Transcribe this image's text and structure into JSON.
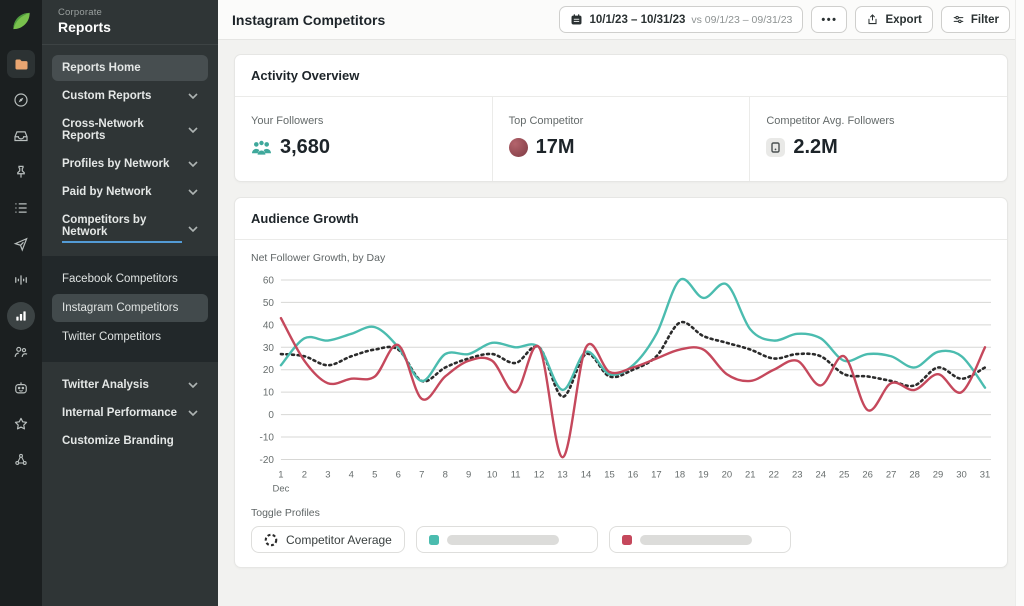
{
  "brand": {
    "eyebrow": "Corporate",
    "title": "Reports"
  },
  "sidebar": {
    "items": [
      {
        "label": "Reports Home"
      },
      {
        "label": "Custom Reports"
      },
      {
        "label": "Cross-Network Reports"
      },
      {
        "label": "Profiles by Network"
      },
      {
        "label": "Paid by Network"
      },
      {
        "label": "Competitors by Network"
      }
    ],
    "submenu": {
      "items": [
        {
          "label": "Facebook Competitors"
        },
        {
          "label": "Instagram Competitors"
        },
        {
          "label": "Twitter Competitors"
        }
      ]
    },
    "footer_items": [
      {
        "label": "Twitter Analysis"
      },
      {
        "label": "Internal Performance"
      },
      {
        "label": "Customize Branding"
      }
    ]
  },
  "header": {
    "title": "Instagram Competitors",
    "date_range": {
      "primary": "10/1/23 – 10/31/23",
      "comparison": "vs 09/1/23 – 09/31/23"
    },
    "more_label": "•••",
    "export_label": "Export",
    "filter_label": "Filter"
  },
  "activity_overview": {
    "title": "Activity Overview",
    "stats": [
      {
        "label": "Your Followers",
        "value": "3,680",
        "icon": "followers-group-icon",
        "icon_color": "#3FA89B"
      },
      {
        "label": "Top Competitor",
        "value": "17M",
        "icon": "competitor-avatar",
        "icon_color": "#9C4850"
      },
      {
        "label": "Competitor Avg. Followers",
        "value": "2.2M",
        "icon": "generic-profile-icon",
        "icon_color": "#E9E9E7"
      }
    ]
  },
  "audience_growth": {
    "title": "Audience Growth",
    "subtitle": "Net Follower Growth, by Day",
    "toggle_label": "Toggle Profiles",
    "legend": [
      {
        "label": "Competitor Average",
        "type": "dashed",
        "color": "#2B2B2B",
        "redacted": false
      },
      {
        "label": "",
        "type": "solid",
        "color": "#4BBCAF",
        "redacted": true
      },
      {
        "label": "",
        "type": "solid",
        "color": "#C5485C",
        "redacted": true
      }
    ]
  },
  "chart_data": {
    "type": "line",
    "title": "Audience Growth",
    "xlabel": "Dec",
    "ylabel": "Net Follower Growth",
    "x": [
      1,
      2,
      3,
      4,
      5,
      6,
      7,
      8,
      9,
      10,
      11,
      12,
      13,
      14,
      15,
      16,
      17,
      18,
      19,
      20,
      21,
      22,
      23,
      24,
      25,
      26,
      27,
      28,
      29,
      30,
      31
    ],
    "x_group_label": "Dec",
    "ylim": [
      -20,
      60
    ],
    "ytick_step": 10,
    "grid": "horizontal",
    "legend_position": "bottom",
    "series": [
      {
        "name": "Competitor Average",
        "style": "dotted",
        "color": "#2B2B2B",
        "values": [
          27,
          26,
          22,
          26,
          29,
          29,
          15,
          21,
          25,
          27,
          23,
          30,
          8,
          27,
          17,
          20,
          26,
          41,
          35,
          32,
          29,
          25,
          27,
          26,
          18,
          17,
          15,
          13,
          21,
          16,
          21
        ]
      },
      {
        "name": "profile-teal",
        "style": "solid",
        "color": "#4BBCAF",
        "values": [
          22,
          34,
          33,
          36,
          39,
          30,
          15,
          27,
          27,
          32,
          30,
          30,
          11,
          28,
          18,
          22,
          36,
          60,
          52,
          58,
          38,
          33,
          36,
          34,
          24,
          27,
          26,
          21,
          28,
          26,
          12
        ]
      },
      {
        "name": "profile-red",
        "style": "solid",
        "color": "#C5485C",
        "values": [
          43,
          24,
          14,
          16,
          17,
          31,
          7,
          17,
          24,
          24,
          10,
          30,
          -19,
          30,
          19,
          21,
          25,
          29,
          29,
          18,
          15,
          20,
          24,
          13,
          26,
          2,
          14,
          11,
          18,
          10,
          30
        ]
      }
    ]
  }
}
